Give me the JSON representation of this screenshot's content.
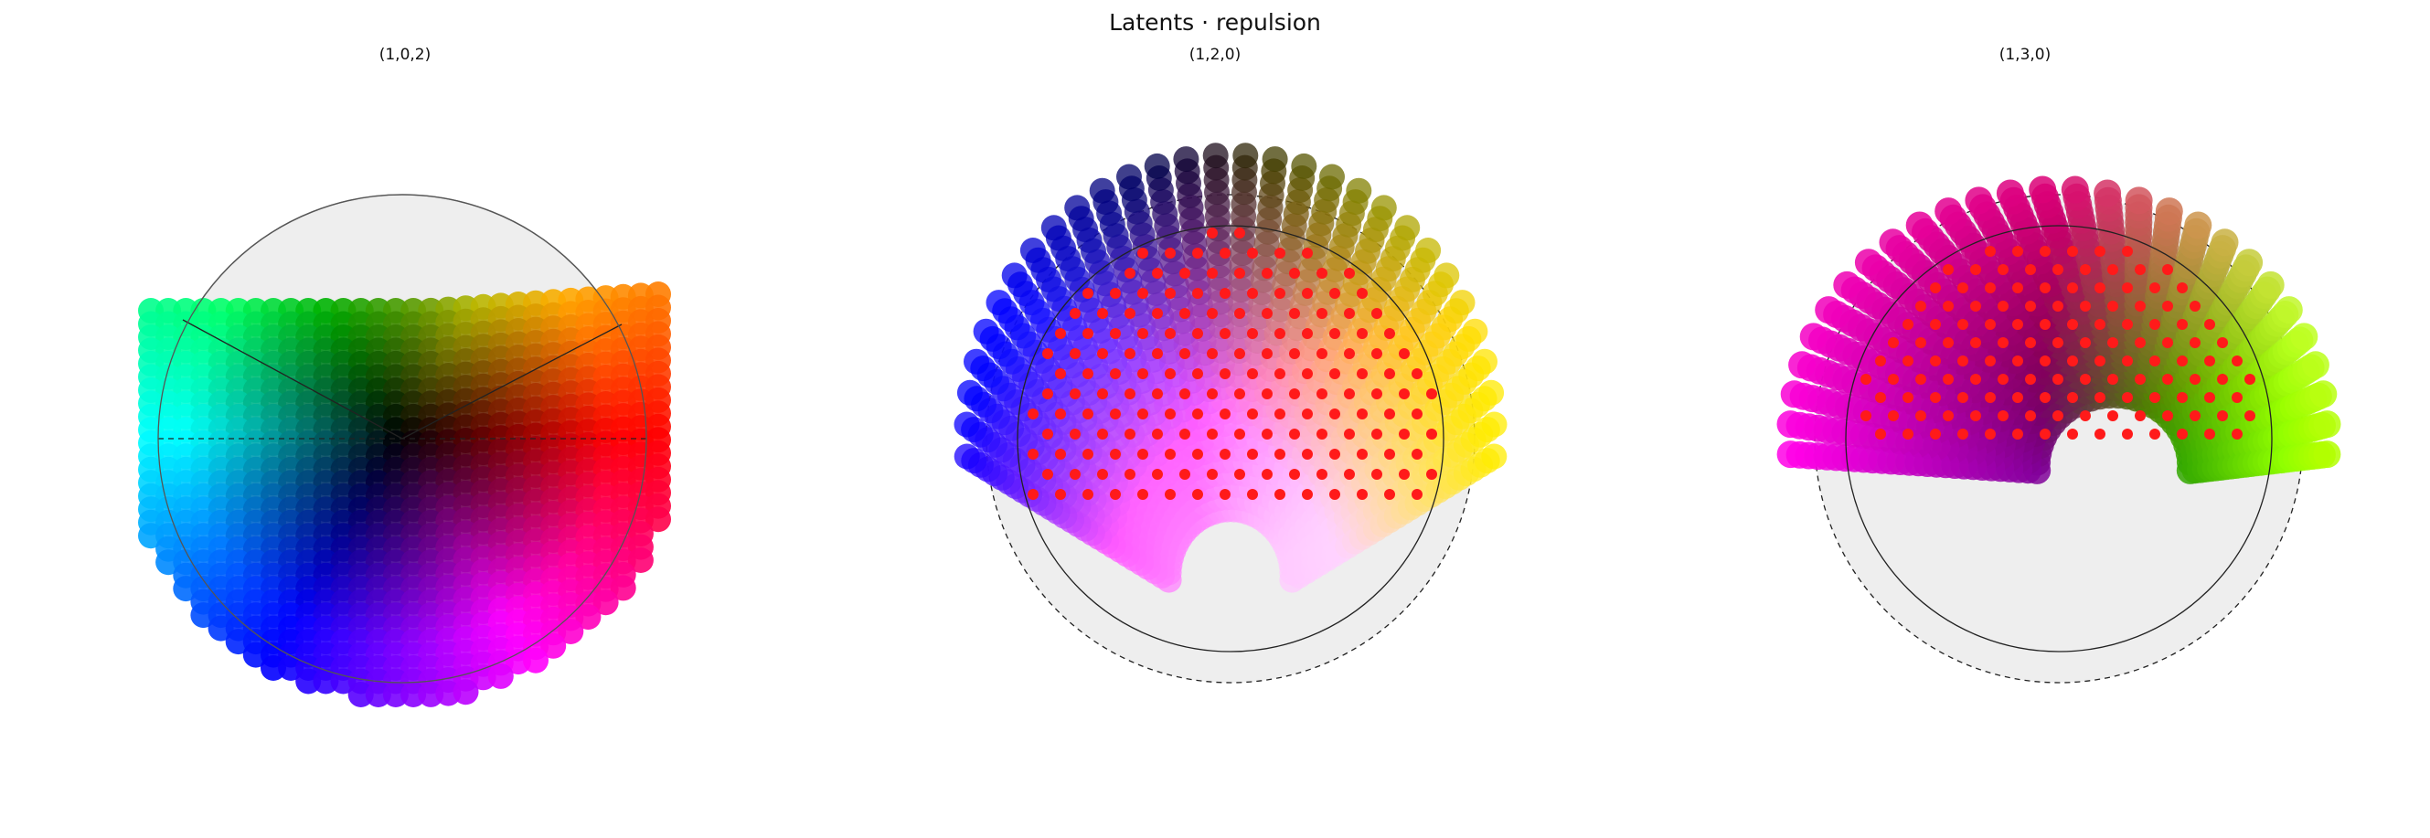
{
  "figure": {
    "title": "Latents · repulsion"
  },
  "chart_data": [
    {
      "type": "scatter",
      "title": "(1,0,2)",
      "unit_disk": true,
      "outer_dashed_circle": false,
      "red_markers": false,
      "axes_visible": false,
      "background_disk_color": "#eeeeee",
      "color_scheme": "hsv-angle-hue"
    },
    {
      "type": "scatter",
      "title": "(1,2,0)",
      "unit_disk": true,
      "outer_dashed_circle": true,
      "red_markers": true,
      "axes_visible": false,
      "background_disk_color": "#eeeeee",
      "color_scheme": "rgb-position"
    },
    {
      "type": "scatter",
      "title": "(1,3,0)",
      "unit_disk": true,
      "outer_dashed_circle": true,
      "red_markers": true,
      "axes_visible": false,
      "background_disk_color": "#eeeeee",
      "color_scheme": "rgb-position"
    }
  ]
}
